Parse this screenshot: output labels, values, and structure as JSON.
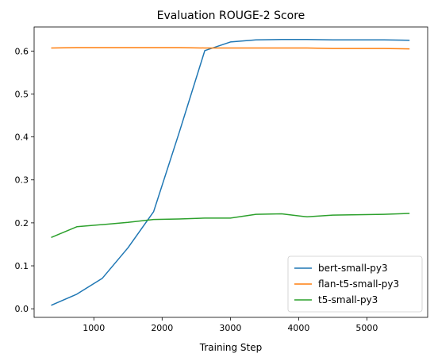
{
  "chart_data": {
    "type": "line",
    "title": "Evaluation ROUGE-2 Score",
    "xlabel": "Training Step",
    "ylabel": "",
    "xlim": [
      125,
      5890
    ],
    "ylim": [
      -0.02,
      0.656
    ],
    "xticks": [
      1000,
      2000,
      3000,
      4000,
      5000
    ],
    "xtick_labels": [
      "1000",
      "2000",
      "3000",
      "4000",
      "5000"
    ],
    "yticks": [
      0.0,
      0.1,
      0.2,
      0.3,
      0.4,
      0.5,
      0.6
    ],
    "ytick_labels": [
      "0.0",
      "0.1",
      "0.2",
      "0.3",
      "0.4",
      "0.5",
      "0.6"
    ],
    "grid": false,
    "legend_position": "lower-right",
    "x": [
      375,
      750,
      1125,
      1500,
      1875,
      2250,
      2625,
      3000,
      3375,
      3750,
      4125,
      4500,
      4875,
      5250,
      5625
    ],
    "series": [
      {
        "name": "bert-small-py3",
        "color": "#1f77b4",
        "values": [
          0.008,
          0.034,
          0.071,
          0.142,
          0.226,
          0.41,
          0.601,
          0.621,
          0.626,
          0.627,
          0.627,
          0.626,
          0.626,
          0.626,
          0.625
        ]
      },
      {
        "name": "flan-t5-small-py3",
        "color": "#ff7f0e",
        "values": [
          0.607,
          0.608,
          0.608,
          0.608,
          0.608,
          0.608,
          0.607,
          0.607,
          0.607,
          0.607,
          0.607,
          0.606,
          0.606,
          0.606,
          0.605
        ]
      },
      {
        "name": "t5-small-py3",
        "color": "#2ca02c",
        "values": [
          0.166,
          0.191,
          0.196,
          0.201,
          0.208,
          0.209,
          0.211,
          0.211,
          0.22,
          0.221,
          0.214,
          0.218,
          0.219,
          0.22,
          0.222
        ]
      }
    ]
  }
}
